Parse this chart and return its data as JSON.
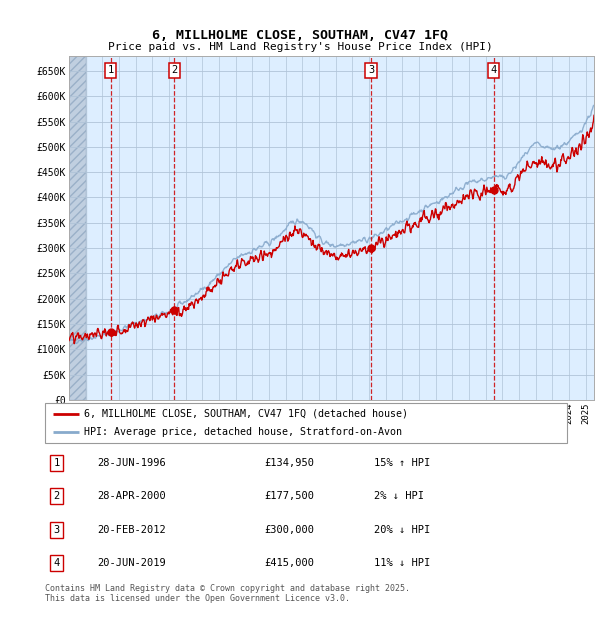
{
  "title1": "6, MILLHOLME CLOSE, SOUTHAM, CV47 1FQ",
  "title2": "Price paid vs. HM Land Registry's House Price Index (HPI)",
  "ylabel_ticks": [
    "£0",
    "£50K",
    "£100K",
    "£150K",
    "£200K",
    "£250K",
    "£300K",
    "£350K",
    "£400K",
    "£450K",
    "£500K",
    "£550K",
    "£600K",
    "£650K"
  ],
  "ylim": [
    0,
    680000
  ],
  "xlim_start": 1994.0,
  "xlim_end": 2025.5,
  "sale_dates": [
    1996.49,
    2000.32,
    2012.13,
    2019.47
  ],
  "sale_prices": [
    134950,
    177500,
    300000,
    415000
  ],
  "sale_labels": [
    "1",
    "2",
    "3",
    "4"
  ],
  "legend_red": "6, MILLHOLME CLOSE, SOUTHAM, CV47 1FQ (detached house)",
  "legend_blue": "HPI: Average price, detached house, Stratford-on-Avon",
  "table_rows": [
    [
      "1",
      "28-JUN-1996",
      "£134,950",
      "15% ↑ HPI"
    ],
    [
      "2",
      "28-APR-2000",
      "£177,500",
      "2% ↓ HPI"
    ],
    [
      "3",
      "20-FEB-2012",
      "£300,000",
      "20% ↓ HPI"
    ],
    [
      "4",
      "20-JUN-2019",
      "£415,000",
      "11% ↓ HPI"
    ]
  ],
  "footnote": "Contains HM Land Registry data © Crown copyright and database right 2025.\nThis data is licensed under the Open Government Licence v3.0.",
  "bg_color": "#ddeeff",
  "hatch_color": "#c8d8e8",
  "grid_color": "#b0c4d8",
  "red_color": "#cc0000",
  "blue_color": "#88aacc",
  "sale_dot_color": "#cc0000"
}
